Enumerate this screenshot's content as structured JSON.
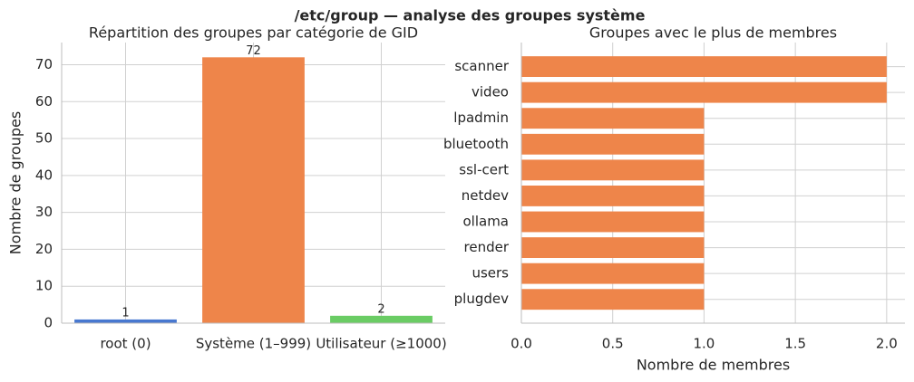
{
  "title": "/etc/group — analyse des groupes système",
  "chart_data": [
    {
      "type": "bar",
      "title": "Répartition des groupes par catégorie de GID",
      "y_label": "Nombre de groupes",
      "categories": [
        "root (0)",
        "Système (1–999)",
        "Utilisateur (≥1000)"
      ],
      "values": [
        1,
        72,
        2
      ],
      "colors": [
        "#4878d0",
        "#ee854a",
        "#6acc64"
      ],
      "ylim": [
        0,
        76
      ],
      "yticks": [
        0,
        10,
        20,
        30,
        40,
        50,
        60,
        70
      ],
      "grid": true
    },
    {
      "type": "barh",
      "title": "Groupes avec le plus de membres",
      "x_label": "Nombre de membres",
      "categories": [
        "scanner",
        "video",
        "lpadmin",
        "bluetooth",
        "ssl-cert",
        "netdev",
        "ollama",
        "render",
        "users",
        "plugdev"
      ],
      "values": [
        2,
        2,
        1,
        1,
        1,
        1,
        1,
        1,
        1,
        1
      ],
      "color": "#ee854a",
      "xlim": [
        0,
        2.1
      ],
      "xticks": [
        {
          "value": 0,
          "label": "0.0"
        },
        0.5,
        {
          "value": 1,
          "label": "1.0"
        },
        1.5,
        {
          "value": 2,
          "label": "2.0"
        }
      ],
      "grid": true
    }
  ]
}
